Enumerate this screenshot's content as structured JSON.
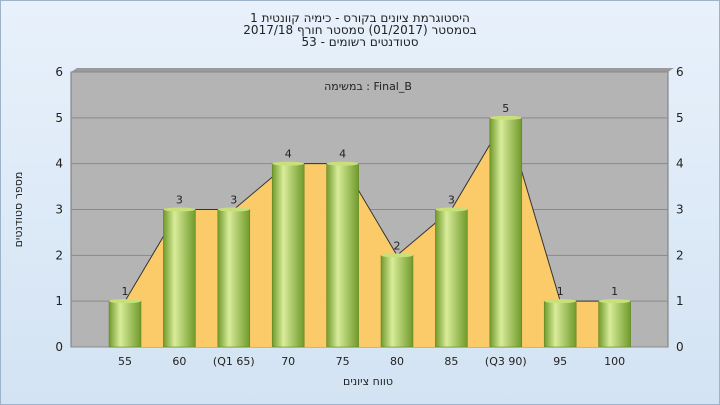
{
  "chart_data": {
    "type": "bar",
    "title_lines": [
      "היסטוגרמת ציונים בקורס - כימיה קוונטית 1",
      "בסמסטר  (01/2017)  סמסטר חורף  2017/18",
      "סטודנטים רשומים - 53"
    ],
    "annotation": "במשימה : Final_B",
    "xlabel": "טווח ציונים",
    "ylabel": "מספר סטודנטים",
    "categories": [
      "55",
      "60",
      "(Q1 65)",
      "70",
      "75",
      "80",
      "85",
      "(Q3 90)",
      "95",
      "100"
    ],
    "values": [
      1,
      3,
      3,
      4,
      4,
      2,
      3,
      5,
      1,
      1
    ],
    "ylim": [
      0,
      6
    ],
    "yticks": [
      "0",
      "1",
      "2",
      "3",
      "4",
      "5",
      "6"
    ],
    "grid": true,
    "colors": {
      "plot_bg": "#b4b4b4",
      "bar_light": "#d9ec9a",
      "bar_dark": "#6f9a2a",
      "area_fill": "#ffcc66",
      "line": "#333333"
    }
  }
}
